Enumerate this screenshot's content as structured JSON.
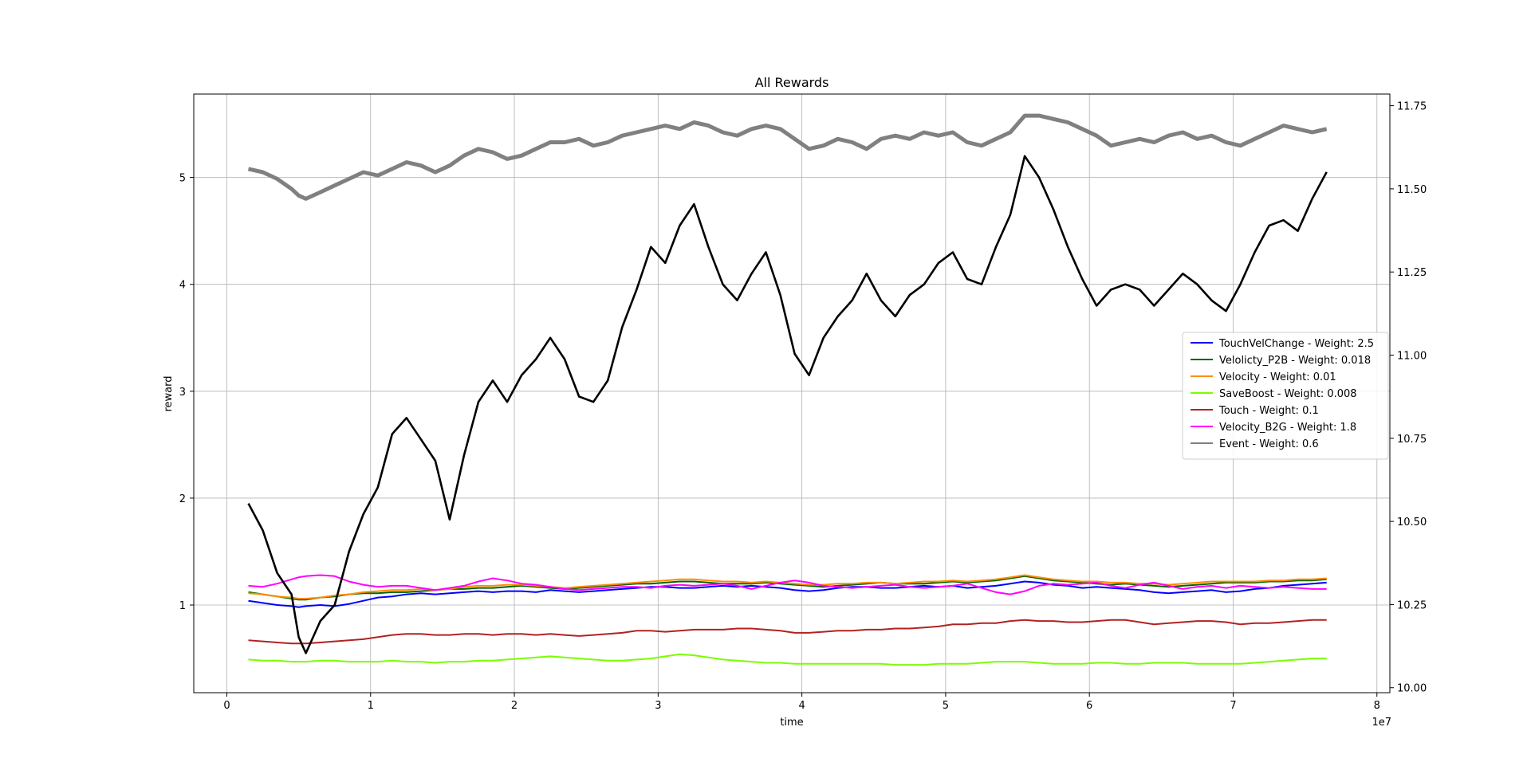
{
  "chart_data": {
    "type": "line",
    "title": "All Rewards",
    "xlabel": "time",
    "ylabel": "reward",
    "x_exponent_label": "1e7",
    "xlim": [
      -2300000,
      80900000
    ],
    "ylim": [
      0.18,
      5.78
    ],
    "y2lim": [
      9.985,
      11.785
    ],
    "x_ticks": [
      0,
      10000000,
      20000000,
      30000000,
      40000000,
      50000000,
      60000000,
      70000000,
      80000000
    ],
    "x_tick_labels": [
      "0",
      "1",
      "2",
      "3",
      "4",
      "5",
      "6",
      "7",
      "8"
    ],
    "y_ticks": [
      1,
      2,
      3,
      4,
      5
    ],
    "y_tick_labels": [
      "1",
      "2",
      "3",
      "4",
      "5"
    ],
    "y2_ticks": [
      10.0,
      10.25,
      10.5,
      10.75,
      11.0,
      11.25,
      11.5,
      11.75
    ],
    "y2_tick_labels": [
      "10.00",
      "10.25",
      "10.50",
      "10.75",
      "11.00",
      "11.25",
      "11.50",
      "11.75"
    ],
    "grid": true,
    "legend_position": "center-right",
    "x": [
      1500000,
      2500000,
      3500000,
      4500000,
      5000000,
      5500000,
      6500000,
      7500000,
      8500000,
      9500000,
      10500000,
      11500000,
      12500000,
      13500000,
      14500000,
      15500000,
      16500000,
      17500000,
      18500000,
      19500000,
      20500000,
      21500000,
      22500000,
      23500000,
      24500000,
      25500000,
      26500000,
      27500000,
      28500000,
      29500000,
      30500000,
      31500000,
      32500000,
      33500000,
      34500000,
      35500000,
      36500000,
      37500000,
      38500000,
      39500000,
      40500000,
      41500000,
      42500000,
      43500000,
      44500000,
      45500000,
      46500000,
      47500000,
      48500000,
      49500000,
      50500000,
      51500000,
      52500000,
      53500000,
      54500000,
      55500000,
      56500000,
      57500000,
      58500000,
      59500000,
      60500000,
      61500000,
      62500000,
      63500000,
      64500000,
      65500000,
      66500000,
      67500000,
      68500000,
      69500000,
      70500000,
      71500000,
      72500000,
      73500000,
      74500000,
      75500000,
      76500000
    ],
    "series": [
      {
        "name": "TouchVelChange - Weight: 2.5",
        "color": "#0000ff",
        "axis": "left",
        "values": [
          1.04,
          1.02,
          1.0,
          0.99,
          0.98,
          0.99,
          1.0,
          0.99,
          1.01,
          1.04,
          1.07,
          1.08,
          1.1,
          1.11,
          1.1,
          1.11,
          1.12,
          1.13,
          1.12,
          1.13,
          1.13,
          1.12,
          1.14,
          1.13,
          1.12,
          1.13,
          1.14,
          1.15,
          1.16,
          1.17,
          1.17,
          1.16,
          1.16,
          1.17,
          1.18,
          1.17,
          1.18,
          1.17,
          1.16,
          1.14,
          1.13,
          1.14,
          1.16,
          1.17,
          1.17,
          1.16,
          1.16,
          1.17,
          1.18,
          1.17,
          1.18,
          1.16,
          1.17,
          1.18,
          1.2,
          1.22,
          1.21,
          1.19,
          1.18,
          1.16,
          1.17,
          1.16,
          1.15,
          1.14,
          1.12,
          1.11,
          1.12,
          1.13,
          1.14,
          1.12,
          1.13,
          1.15,
          1.16,
          1.18,
          1.19,
          1.2,
          1.21
        ]
      },
      {
        "name": "Velolicty_P2B - Weight: 0.018",
        "color": "#006400",
        "axis": "left",
        "values": [
          1.12,
          1.1,
          1.08,
          1.06,
          1.05,
          1.05,
          1.07,
          1.08,
          1.1,
          1.11,
          1.11,
          1.12,
          1.12,
          1.13,
          1.14,
          1.15,
          1.15,
          1.16,
          1.16,
          1.17,
          1.18,
          1.17,
          1.16,
          1.15,
          1.16,
          1.17,
          1.18,
          1.19,
          1.2,
          1.2,
          1.21,
          1.22,
          1.22,
          1.21,
          1.2,
          1.2,
          1.2,
          1.21,
          1.2,
          1.19,
          1.18,
          1.17,
          1.18,
          1.19,
          1.2,
          1.21,
          1.2,
          1.2,
          1.2,
          1.21,
          1.22,
          1.21,
          1.22,
          1.23,
          1.25,
          1.27,
          1.25,
          1.23,
          1.22,
          1.21,
          1.2,
          1.19,
          1.2,
          1.19,
          1.18,
          1.17,
          1.18,
          1.19,
          1.2,
          1.21,
          1.21,
          1.21,
          1.22,
          1.22,
          1.23,
          1.23,
          1.24
        ]
      },
      {
        "name": "Velocity - Weight: 0.01",
        "color": "#ff8c00",
        "axis": "left",
        "values": [
          1.11,
          1.1,
          1.08,
          1.07,
          1.06,
          1.06,
          1.07,
          1.09,
          1.1,
          1.12,
          1.13,
          1.14,
          1.14,
          1.15,
          1.14,
          1.15,
          1.17,
          1.18,
          1.18,
          1.19,
          1.19,
          1.18,
          1.17,
          1.16,
          1.17,
          1.18,
          1.19,
          1.2,
          1.21,
          1.22,
          1.23,
          1.24,
          1.24,
          1.23,
          1.22,
          1.22,
          1.21,
          1.22,
          1.21,
          1.2,
          1.19,
          1.19,
          1.2,
          1.2,
          1.21,
          1.21,
          1.2,
          1.21,
          1.22,
          1.22,
          1.23,
          1.22,
          1.23,
          1.24,
          1.26,
          1.28,
          1.26,
          1.24,
          1.23,
          1.22,
          1.22,
          1.21,
          1.21,
          1.2,
          1.2,
          1.19,
          1.2,
          1.21,
          1.22,
          1.22,
          1.22,
          1.22,
          1.23,
          1.23,
          1.24,
          1.24,
          1.25
        ]
      },
      {
        "name": "SaveBoost - Weight: 0.008",
        "color": "#7cfc00",
        "axis": "left",
        "values": [
          0.49,
          0.48,
          0.48,
          0.47,
          0.47,
          0.47,
          0.48,
          0.48,
          0.47,
          0.47,
          0.47,
          0.48,
          0.47,
          0.47,
          0.46,
          0.47,
          0.47,
          0.48,
          0.48,
          0.49,
          0.5,
          0.51,
          0.52,
          0.51,
          0.5,
          0.49,
          0.48,
          0.48,
          0.49,
          0.5,
          0.52,
          0.54,
          0.53,
          0.51,
          0.49,
          0.48,
          0.47,
          0.46,
          0.46,
          0.45,
          0.45,
          0.45,
          0.45,
          0.45,
          0.45,
          0.45,
          0.44,
          0.44,
          0.44,
          0.45,
          0.45,
          0.45,
          0.46,
          0.47,
          0.47,
          0.47,
          0.46,
          0.45,
          0.45,
          0.45,
          0.46,
          0.46,
          0.45,
          0.45,
          0.46,
          0.46,
          0.46,
          0.45,
          0.45,
          0.45,
          0.45,
          0.46,
          0.47,
          0.48,
          0.49,
          0.5,
          0.5
        ]
      },
      {
        "name": "Touch - Weight: 0.1",
        "color": "#b22222",
        "axis": "left",
        "values": [
          0.67,
          0.66,
          0.65,
          0.64,
          0.64,
          0.64,
          0.65,
          0.66,
          0.67,
          0.68,
          0.7,
          0.72,
          0.73,
          0.73,
          0.72,
          0.72,
          0.73,
          0.73,
          0.72,
          0.73,
          0.73,
          0.72,
          0.73,
          0.72,
          0.71,
          0.72,
          0.73,
          0.74,
          0.76,
          0.76,
          0.75,
          0.76,
          0.77,
          0.77,
          0.77,
          0.78,
          0.78,
          0.77,
          0.76,
          0.74,
          0.74,
          0.75,
          0.76,
          0.76,
          0.77,
          0.77,
          0.78,
          0.78,
          0.79,
          0.8,
          0.82,
          0.82,
          0.83,
          0.83,
          0.85,
          0.86,
          0.85,
          0.85,
          0.84,
          0.84,
          0.85,
          0.86,
          0.86,
          0.84,
          0.82,
          0.83,
          0.84,
          0.85,
          0.85,
          0.84,
          0.82,
          0.83,
          0.83,
          0.84,
          0.85,
          0.86,
          0.86
        ]
      },
      {
        "name": "Velocity_B2G - Weight: 1.8",
        "color": "#ff00ff",
        "axis": "left",
        "values": [
          1.18,
          1.17,
          1.2,
          1.24,
          1.26,
          1.27,
          1.28,
          1.27,
          1.22,
          1.19,
          1.17,
          1.18,
          1.18,
          1.16,
          1.14,
          1.16,
          1.18,
          1.22,
          1.25,
          1.23,
          1.2,
          1.19,
          1.17,
          1.15,
          1.14,
          1.15,
          1.16,
          1.17,
          1.17,
          1.16,
          1.18,
          1.19,
          1.18,
          1.19,
          1.2,
          1.18,
          1.15,
          1.18,
          1.21,
          1.23,
          1.21,
          1.18,
          1.17,
          1.16,
          1.17,
          1.18,
          1.19,
          1.17,
          1.16,
          1.17,
          1.18,
          1.2,
          1.16,
          1.12,
          1.1,
          1.13,
          1.18,
          1.2,
          1.19,
          1.2,
          1.21,
          1.18,
          1.16,
          1.19,
          1.21,
          1.18,
          1.15,
          1.17,
          1.18,
          1.16,
          1.18,
          1.17,
          1.16,
          1.17,
          1.16,
          1.15,
          1.15
        ]
      },
      {
        "name": "Event - Weight: 0.6",
        "color": "#808080",
        "axis": "right",
        "values": [
          11.56,
          11.55,
          11.53,
          11.5,
          11.48,
          11.47,
          11.49,
          11.51,
          11.53,
          11.55,
          11.54,
          11.56,
          11.58,
          11.57,
          11.55,
          11.57,
          11.6,
          11.62,
          11.61,
          11.59,
          11.6,
          11.62,
          11.64,
          11.64,
          11.65,
          11.63,
          11.64,
          11.66,
          11.67,
          11.68,
          11.69,
          11.68,
          11.7,
          11.69,
          11.67,
          11.66,
          11.68,
          11.69,
          11.68,
          11.65,
          11.62,
          11.63,
          11.65,
          11.64,
          11.62,
          11.65,
          11.66,
          11.65,
          11.67,
          11.66,
          11.67,
          11.64,
          11.63,
          11.65,
          11.67,
          11.72,
          11.72,
          11.71,
          11.7,
          11.68,
          11.66,
          11.63,
          11.64,
          11.65,
          11.64,
          11.66,
          11.67,
          11.65,
          11.66,
          11.64,
          11.63,
          11.65,
          11.67,
          11.69,
          11.68,
          11.67,
          11.68
        ]
      },
      {
        "name": "",
        "color": "#000000",
        "axis": "left",
        "in_legend": false,
        "values": [
          1.95,
          1.7,
          1.3,
          1.1,
          0.7,
          0.55,
          0.85,
          1.0,
          1.5,
          1.85,
          2.1,
          2.6,
          2.75,
          2.55,
          2.35,
          1.8,
          2.4,
          2.9,
          3.1,
          2.9,
          3.15,
          3.3,
          3.5,
          3.3,
          2.95,
          2.9,
          3.1,
          3.6,
          3.95,
          4.35,
          4.2,
          4.55,
          4.75,
          4.35,
          4.0,
          3.85,
          4.1,
          4.3,
          3.9,
          3.35,
          3.15,
          3.5,
          3.7,
          3.85,
          4.1,
          3.85,
          3.7,
          3.9,
          4.0,
          4.2,
          4.3,
          4.05,
          4.0,
          4.35,
          4.65,
          5.2,
          5.0,
          4.7,
          4.35,
          4.05,
          3.8,
          3.95,
          4.0,
          3.95,
          3.8,
          3.95,
          4.1,
          4.0,
          3.85,
          3.75,
          4.0,
          4.3,
          4.55,
          4.6,
          4.5,
          4.8,
          5.05
        ]
      }
    ]
  }
}
